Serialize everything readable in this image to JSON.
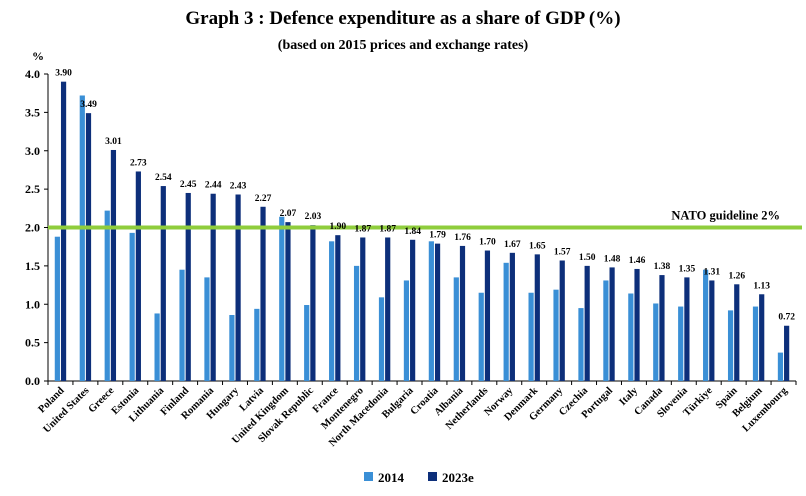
{
  "chart_data": {
    "type": "bar",
    "title": "Graph 3 : Defence expenditure as a share of GDP (%)",
    "subtitle": "(based on 2015 prices and exchange rates)",
    "ylabel": "%",
    "ylim": [
      0,
      4.0
    ],
    "yticks": [
      "0.0",
      "0.5",
      "1.0",
      "1.5",
      "2.0",
      "2.5",
      "3.0",
      "3.5",
      "4.0"
    ],
    "grid": false,
    "legend_position": "bottom",
    "categories": [
      "Poland",
      "United States",
      "Greece",
      "Estonia",
      "Lithuania",
      "Finland",
      "Romania",
      "Hungary",
      "Latvia",
      "United Kingdom",
      "Slovak Republic",
      "France",
      "Montenegro",
      "North Macedonia",
      "Bulgaria",
      "Croatia",
      "Albania",
      "Netherlands",
      "Norway",
      "Denmark",
      "Germany",
      "Czechia",
      "Portugal",
      "Italy",
      "Canada",
      "Slovenia",
      "Türkiye",
      "Spain",
      "Belgium",
      "Luxembourg"
    ],
    "series": [
      {
        "name": "2014",
        "color": "#3a8fd6",
        "values": [
          1.88,
          3.72,
          2.22,
          1.93,
          0.88,
          1.45,
          1.35,
          0.86,
          0.94,
          2.14,
          0.99,
          1.82,
          1.5,
          1.09,
          1.31,
          1.82,
          1.35,
          1.15,
          1.54,
          1.15,
          1.19,
          0.95,
          1.31,
          1.14,
          1.01,
          0.97,
          1.45,
          0.92,
          0.97,
          0.37
        ]
      },
      {
        "name": "2023e",
        "color": "#0d2f7a",
        "values": [
          3.9,
          3.49,
          3.01,
          2.73,
          2.54,
          2.45,
          2.44,
          2.43,
          2.27,
          2.07,
          2.03,
          1.9,
          1.87,
          1.87,
          1.84,
          1.79,
          1.76,
          1.7,
          1.67,
          1.65,
          1.57,
          1.5,
          1.48,
          1.46,
          1.38,
          1.35,
          1.31,
          1.26,
          1.13,
          0.72
        ],
        "labels": [
          "3.90",
          "3.49",
          "3.01",
          "2.73",
          "2.54",
          "2.45",
          "2.44",
          "2.43",
          "2.27",
          "2.07",
          "2.03",
          "1.90",
          "1.87",
          "1.87",
          "1.84",
          "1.79",
          "1.76",
          "1.70",
          "1.67",
          "1.65",
          "1.57",
          "1.50",
          "1.48",
          "1.46",
          "1.38",
          "1.35",
          "1.31",
          "1.26",
          "1.13",
          "0.72"
        ]
      }
    ],
    "reference_line": {
      "label": "NATO guideline 2%",
      "value": 2.0,
      "color": "#8fcd3c"
    }
  }
}
